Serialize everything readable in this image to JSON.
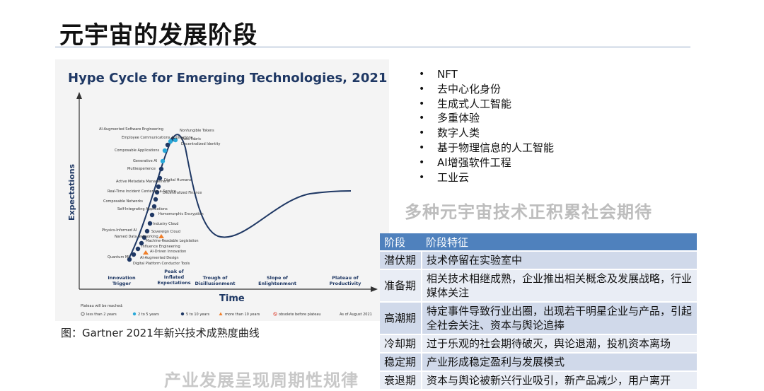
{
  "page_title": "元宇宙的发展阶段",
  "chart": {
    "title": "Hype Cycle for Emerging Technologies, 2021",
    "y_axis": "Expectations",
    "x_axis": "Time",
    "phases": [
      [
        "Innovation",
        "Trigger"
      ],
      [
        "Peak of",
        "Inflated",
        "Expectations"
      ],
      [
        "Trough of",
        "Disillusionment"
      ],
      [
        "Slope of",
        "Enlightenment"
      ],
      [
        "Plateau of",
        "Productivity"
      ]
    ],
    "technologies": [
      "AI-Augmented Software Engineering",
      "Nonfungible Tokens",
      "Employee Communications Applications",
      "Data Fabric",
      "Decentralized Identity",
      "Composable Applications",
      "Generative AI",
      "Multiexperience",
      "Digital Humans",
      "Active Metadata Management",
      "Real-Time Incident Center-as-a-Service",
      "Decentralized Finance",
      "Composable Networks",
      "Self-Integrating Applications",
      "Homomorphic Encryption",
      "Industry Cloud",
      "Physics-Informed AI",
      "Sovereign Cloud",
      "Named Data Networking",
      "Machine-Readable Legislation",
      "Influence Engineering",
      "AI-Driven Innovation",
      "Quantum ML",
      "AI-Augmented Design",
      "Digital Platform Conductor Tools"
    ],
    "legend_title": "Plateau will be reached:",
    "legend": [
      "less than 2 years",
      "2 to 5 years",
      "5 to 10 years",
      "more than 10 years",
      "obsolete before plateau"
    ],
    "date_note": "As of August 2021",
    "colors": {
      "dark_dot": "#1f3864",
      "teal_dot": "#29a8d8",
      "orange": "#f07f2a",
      "curve": "#1f3864"
    }
  },
  "caption": "图：Gartner 2021年新兴技术成熟度曲线",
  "bottom_text": "产业发展呈现周期性规律",
  "bullets": [
    "NFT",
    "去中心化身份",
    "生成式人工智能",
    "多重体验",
    "数字人类",
    "基于物理信息的人工智能",
    "AI增强软件工程",
    "工业云"
  ],
  "sub_heading": "多种元宇宙技术正积累社会期待",
  "table": {
    "headers": [
      "阶段",
      "阶段特征"
    ],
    "rows": [
      [
        "潜伏期",
        "技术停留在实验室中"
      ],
      [
        "准备期",
        "相关技术相继成熟，企业推出相关概念及发展战略，行业媒体关注"
      ],
      [
        "高潮期",
        "特定事件导致行业出圈，出现若干明星企业与产品，引起全社会关注、资本与舆论追捧"
      ],
      [
        "冷却期",
        "过于乐观的社会期待破灭，舆论退潮，投机资本离场"
      ],
      [
        "稳定期",
        "产业形成稳定盈利与发展模式"
      ],
      [
        "衰退期",
        "资本与舆论被新兴行业吸引，新产品减少，用户离开"
      ]
    ]
  }
}
